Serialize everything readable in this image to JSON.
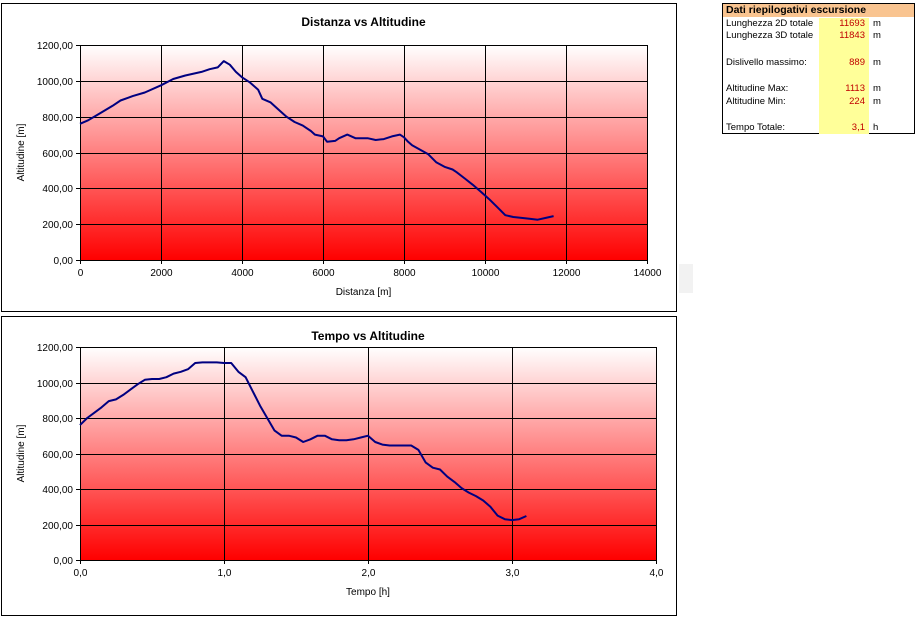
{
  "colors": {
    "series": "#000080",
    "plot_top": "#ffffff",
    "plot_bottom": "#ff0000",
    "summary_header": "#f9c490",
    "summary_values_bg": "#ffff99",
    "summary_values_text": "#c00000"
  },
  "summary": {
    "title": "Dati riepilogativi escursione",
    "rows": [
      {
        "label": "Lunghezza 2D totale",
        "value": "11693",
        "unit": "m"
      },
      {
        "label": "Lunghezza 3D totale",
        "value": "11843",
        "unit": "m"
      },
      {
        "label": "Dislivello massimo:",
        "value": "889",
        "unit": "m"
      },
      {
        "label": "Altitudine Max:",
        "value": "1113",
        "unit": "m"
      },
      {
        "label": "Altitudine Min:",
        "value": "224",
        "unit": "m"
      },
      {
        "label": "Tempo Totale:",
        "value": "3,1",
        "unit": "h"
      }
    ]
  },
  "chart_data": [
    {
      "type": "line",
      "title": "Distanza vs Altitudine",
      "xlabel": "Distanza [m]",
      "ylabel": "Altitudine [m]",
      "xlim": [
        0,
        14000
      ],
      "ylim": [
        0,
        1200
      ],
      "xticks": [
        "0",
        "2000",
        "4000",
        "6000",
        "8000",
        "10000",
        "12000",
        "14000"
      ],
      "yticks": [
        "0,00",
        "200,00",
        "400,00",
        "600,00",
        "800,00",
        "1000,00",
        "1200,00"
      ],
      "grid": true,
      "x": [
        0,
        200,
        500,
        800,
        1000,
        1300,
        1600,
        2000,
        2300,
        2600,
        3000,
        3200,
        3400,
        3550,
        3700,
        3850,
        4000,
        4200,
        4400,
        4500,
        4700,
        4900,
        5100,
        5300,
        5500,
        5700,
        5800,
        6000,
        6100,
        6300,
        6400,
        6600,
        6800,
        6900,
        7100,
        7300,
        7500,
        7700,
        7900,
        8000,
        8100,
        8200,
        8400,
        8600,
        8800,
        9000,
        9200,
        9300,
        9500,
        9700,
        9900,
        10100,
        10300,
        10500,
        10700,
        10900,
        11100,
        11300,
        11500,
        11693
      ],
      "y": [
        760,
        780,
        820,
        860,
        890,
        915,
        935,
        975,
        1010,
        1030,
        1050,
        1065,
        1075,
        1110,
        1090,
        1050,
        1020,
        990,
        950,
        900,
        880,
        840,
        800,
        770,
        750,
        720,
        700,
        690,
        660,
        665,
        680,
        700,
        680,
        680,
        680,
        670,
        675,
        690,
        700,
        685,
        660,
        640,
        615,
        590,
        545,
        520,
        505,
        490,
        455,
        420,
        380,
        340,
        295,
        250,
        240,
        235,
        230,
        225,
        235,
        245
      ]
    },
    {
      "type": "line",
      "title": "Tempo vs Altitudine",
      "xlabel": "Tempo [h]",
      "ylabel": "Altitudine [m]",
      "xlim": [
        0,
        4
      ],
      "ylim": [
        0,
        1200
      ],
      "xticks": [
        "0,0",
        "1,0",
        "2,0",
        "3,0",
        "4,0"
      ],
      "yticks": [
        "0,00",
        "200,00",
        "400,00",
        "600,00",
        "800,00",
        "1000,00",
        "1200,00"
      ],
      "grid": true,
      "x": [
        0,
        0.05,
        0.1,
        0.15,
        0.2,
        0.25,
        0.3,
        0.35,
        0.4,
        0.45,
        0.5,
        0.55,
        0.6,
        0.65,
        0.7,
        0.75,
        0.8,
        0.85,
        0.9,
        0.95,
        1.0,
        1.05,
        1.1,
        1.15,
        1.2,
        1.25,
        1.3,
        1.35,
        1.4,
        1.45,
        1.5,
        1.55,
        1.6,
        1.65,
        1.7,
        1.75,
        1.8,
        1.85,
        1.9,
        1.95,
        2.0,
        2.05,
        2.1,
        2.15,
        2.2,
        2.25,
        2.3,
        2.35,
        2.4,
        2.45,
        2.5,
        2.55,
        2.6,
        2.65,
        2.7,
        2.75,
        2.8,
        2.85,
        2.9,
        2.95,
        3.0,
        3.05,
        3.1
      ],
      "y": [
        760,
        800,
        830,
        860,
        895,
        905,
        930,
        960,
        990,
        1015,
        1020,
        1020,
        1030,
        1050,
        1060,
        1075,
        1110,
        1113,
        1113,
        1113,
        1110,
        1110,
        1060,
        1030,
        950,
        870,
        800,
        730,
        700,
        700,
        690,
        665,
        680,
        700,
        700,
        680,
        675,
        675,
        680,
        690,
        700,
        665,
        650,
        645,
        645,
        645,
        645,
        620,
        550,
        520,
        510,
        470,
        440,
        405,
        380,
        360,
        335,
        300,
        250,
        230,
        225,
        230,
        248
      ]
    }
  ]
}
